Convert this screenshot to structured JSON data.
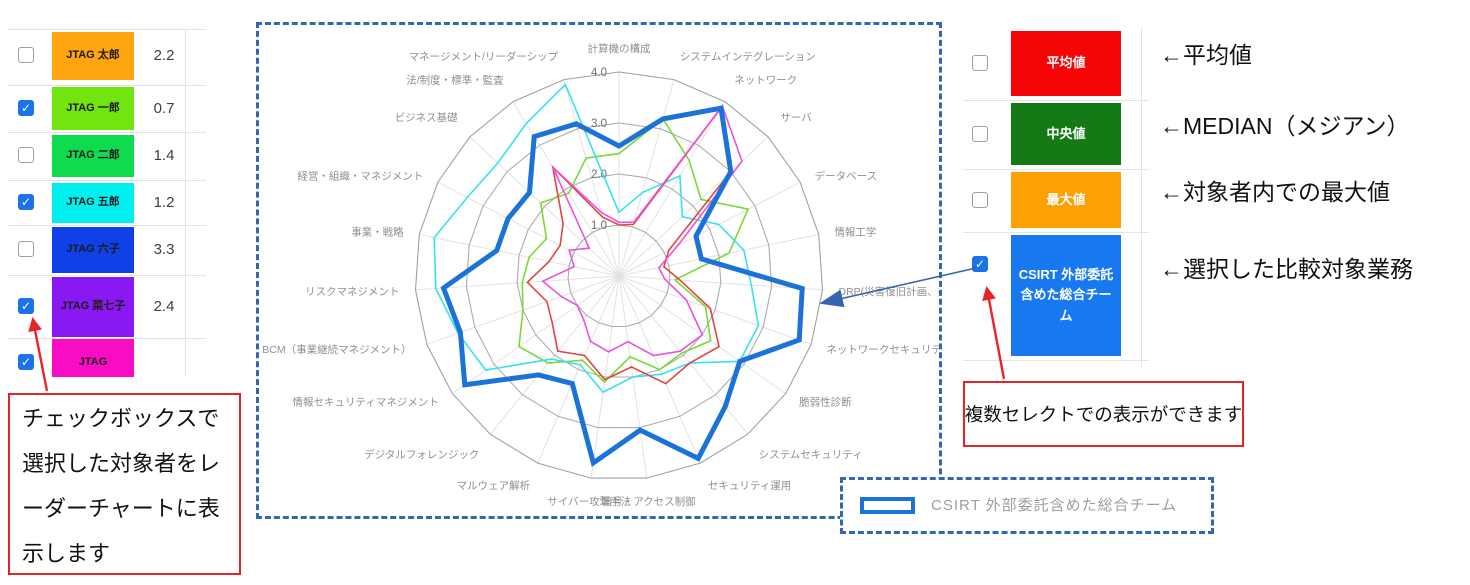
{
  "left_list": {
    "rows": [
      {
        "checked": false,
        "name": "JTAG 太郎",
        "color": "#FFA510",
        "value": "2.2"
      },
      {
        "checked": true,
        "name": "JTAG 一郎",
        "color": "#72E511",
        "value": "0.7"
      },
      {
        "checked": false,
        "name": "JTAG 二郎",
        "color": "#10DB50",
        "value": "1.4"
      },
      {
        "checked": true,
        "name": "JTAG 五郎",
        "color": "#00F0F0",
        "value": "1.2"
      },
      {
        "checked": false,
        "name": "JTAG 六子",
        "color": "#1040E8",
        "value": "3.3"
      },
      {
        "checked": true,
        "name": "JTAG 菜七子",
        "color": "#8A18F2",
        "value": "2.4"
      },
      {
        "checked": true,
        "name": "JTAG",
        "color": "#F80CC4",
        "value": "",
        "partial": true
      }
    ]
  },
  "chart_data": {
    "type": "radar",
    "r_max": 4,
    "r_ticks": [
      "1.0",
      "2.0",
      "3.0",
      "4.0"
    ],
    "grid": "polygon-web",
    "axes": [
      "計算機の構成",
      "システムインテグレーション",
      "ネットワーク",
      "サーバ",
      "データベース",
      "情報工学",
      "DRP(災害復旧計画、技術系)",
      "ネットワークセキュリティ",
      "脆弱性診断",
      "システムセキュリティ",
      "セキュリティ運用",
      "暗号・アクセス制御",
      "サイバー攻撃手法",
      "マルウェア解析",
      "デジタルフォレンジック",
      "情報セキュリティマネジメント",
      "BCM（事業継続マネジメント）",
      "リスクマネジメント",
      "事業・戦略",
      "経営・組織・マネジメント",
      "ビジネス基礎",
      "法/制度・標準・監査",
      "マネージメント/リーダーシップ"
    ],
    "series": [
      {
        "name": "JTAG 一郎",
        "color": "#7CD932",
        "width": 1.6,
        "values": [
          2.4,
          3.2,
          2.65,
          2.2,
          2.85,
          2.2,
          1.1,
          1.8,
          2.2,
          1.95,
          2.0,
          1.6,
          2.1,
          1.8,
          2.2,
          2.4,
          2.0,
          1.9,
          1.8,
          1.6,
          2.1,
          1.9,
          2.4
        ]
      },
      {
        "name": "JTAG 五郎",
        "color": "#35E3EE",
        "width": 1.6,
        "values": [
          1.25,
          1.7,
          2.3,
          1.7,
          2.2,
          2.5,
          2.6,
          2.9,
          2.9,
          2.2,
          2.1,
          2.0,
          2.3,
          1.9,
          2.1,
          3.2,
          3.35,
          3.6,
          3.7,
          3.35,
          3.25,
          3.5,
          3.9
        ]
      },
      {
        "name": "series-red",
        "color": "#E04545",
        "width": 1.6,
        "values": [
          1.0,
          1.05,
          3.9,
          3.0,
          1.1,
          0.9,
          1.2,
          1.9,
          2.4,
          2.2,
          2.3,
          1.8,
          2.05,
          1.7,
          1.9,
          1.6,
          1.5,
          1.8,
          1.4,
          1.3,
          1.5,
          2.5,
          1.2
        ]
      },
      {
        "name": "series-magenta",
        "color": "#EB52DC",
        "width": 1.6,
        "values": [
          1.05,
          1.1,
          3.9,
          3.3,
          1.3,
          0.8,
          0.9,
          1.4,
          2.0,
          1.9,
          1.7,
          1.3,
          1.5,
          1.4,
          1.1,
          1.0,
          1.2,
          1.5,
          0.9,
          1.1,
          0.8,
          2.5,
          1.3
        ]
      },
      {
        "name": "CSIRT 外部委託含めた総合チーム",
        "color": "#1B72D8",
        "width": 5,
        "values": [
          2.55,
          3.2,
          3.85,
          3.0,
          1.7,
          1.65,
          3.6,
          3.75,
          2.9,
          3.3,
          3.9,
          3.05,
          3.7,
          2.3,
          2.5,
          3.7,
          3.3,
          3.45,
          2.45,
          2.45,
          2.4,
          3.2,
          3.1
        ]
      }
    ]
  },
  "right_panel": {
    "rows": [
      {
        "checked": false,
        "label": "平均値",
        "color": "#F50505",
        "annotation": "←平均値"
      },
      {
        "checked": false,
        "label": "中央値",
        "color": "#157A15",
        "annotation": "←MEDIAN（メジアン）"
      },
      {
        "checked": false,
        "label": "最大値",
        "color": "#FCA103",
        "annotation": "←対象者内での最大値"
      },
      {
        "checked": true,
        "label": "CSIRT 外部委託含めた総合チーム",
        "color": "#1878F0",
        "annotation": "←選択した比較対象業務"
      }
    ]
  },
  "callouts": {
    "left_box": "チェックボックスで選択した対象者をレーダーチャートに表示します",
    "right_box": "複数セレクトでの表示ができます"
  },
  "legend": {
    "label": "CSIRT 外部委託含めた総合チーム",
    "swatch_color": "#1B72D8"
  },
  "accent_colors": {
    "dashed_border": "#3465B0",
    "callout_red": "#E02428",
    "checkbox_blue": "#1A73E8"
  }
}
